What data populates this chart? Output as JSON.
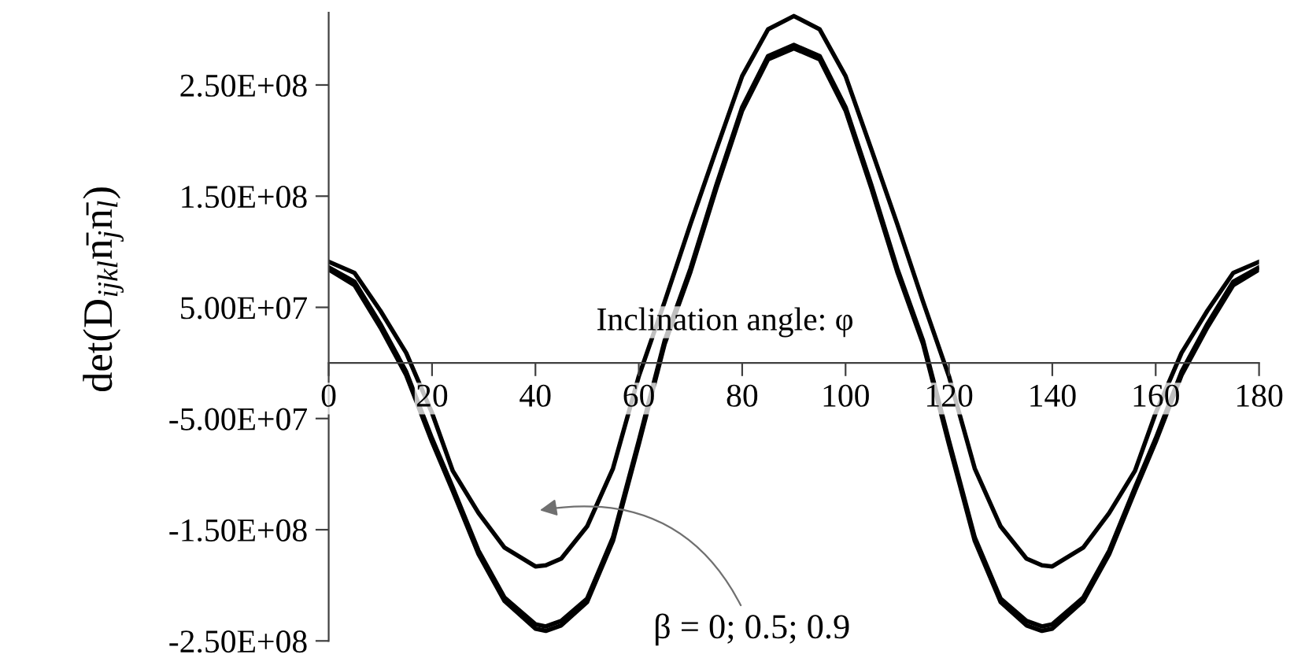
{
  "chart_data": {
    "type": "line",
    "ylabel": "det(D$_{ijkl}$n̄$_{j}$n̄$_{l}$)",
    "xlabel": "Inclination angle: φ",
    "x": [
      0,
      5,
      10,
      15,
      20,
      24,
      29,
      34,
      40,
      42,
      45,
      50,
      55,
      60,
      65,
      70,
      75,
      80,
      85,
      90,
      95,
      100,
      105,
      110,
      115,
      120,
      125,
      130,
      135,
      138,
      140,
      146,
      151,
      156,
      160,
      165,
      170,
      175,
      180
    ],
    "series": [
      {
        "color": "#000000",
        "values": [
          91000000.0,
          81000000.0,
          47000000.0,
          9000000.0,
          -45000000.0,
          -97000000.0,
          -135000000.0,
          -166000000.0,
          -183000000.0,
          -182000000.0,
          -176000000.0,
          -147000000.0,
          -95000000.0,
          -12000000.0,
          55000000.0,
          125000000.0,
          192000000.0,
          258000000.0,
          300000000.0,
          312000000.0,
          300000000.0,
          258000000.0,
          192000000.0,
          125000000.0,
          55000000.0,
          -12000000.0,
          -95000000.0,
          -147000000.0,
          -176000000.0,
          -182000000.0,
          -183000000.0,
          -166000000.0,
          -135000000.0,
          -97000000.0,
          -45000000.0,
          9000000.0,
          47000000.0,
          81000000.0,
          91000000.0
        ]
      },
      {
        "color": "#000000",
        "values": [
          86000000.0,
          73000000.0,
          35000000.0,
          -8000000.0,
          -68000000.0,
          -112000000.0,
          -169000000.0,
          -211000000.0,
          -235000000.0,
          -237000000.0,
          -232000000.0,
          -212000000.0,
          -157000000.0,
          -70000000.0,
          20000000.0,
          85000000.0,
          160000000.0,
          230000000.0,
          276000000.0,
          286000000.0,
          276000000.0,
          230000000.0,
          160000000.0,
          85000000.0,
          20000000.0,
          -70000000.0,
          -157000000.0,
          -212000000.0,
          -232000000.0,
          -237000000.0,
          -235000000.0,
          -211000000.0,
          -169000000.0,
          -112000000.0,
          -68000000.0,
          -8000000.0,
          35000000.0,
          73000000.0,
          86000000.0
        ]
      },
      {
        "color": "#000000",
        "values": [
          84000000.0,
          70000000.0,
          32000000.0,
          -11000000.0,
          -71000000.0,
          -115000000.0,
          -172000000.0,
          -214000000.0,
          -239000000.0,
          -241000000.0,
          -236000000.0,
          -215000000.0,
          -160000000.0,
          -73000000.0,
          17000000.0,
          82000000.0,
          157000000.0,
          227000000.0,
          273000000.0,
          283000000.0,
          273000000.0,
          227000000.0,
          157000000.0,
          82000000.0,
          17000000.0,
          -73000000.0,
          -160000000.0,
          -215000000.0,
          -236000000.0,
          -241000000.0,
          -239000000.0,
          -214000000.0,
          -172000000.0,
          -115000000.0,
          -71000000.0,
          -11000000.0,
          32000000.0,
          70000000.0,
          84000000.0
        ]
      }
    ],
    "xlim": [
      0,
      180
    ],
    "ylim": [
      -250000000.0,
      315000000.0
    ],
    "xticks": [
      0,
      20,
      40,
      60,
      80,
      100,
      120,
      140,
      160,
      180
    ],
    "yticks": [
      {
        "value": 250000000.0,
        "label": "2.50E+08"
      },
      {
        "value": 150000000.0,
        "label": "1.50E+08"
      },
      {
        "value": 50000000.0,
        "label": "5.00E+07"
      },
      {
        "value": -50000000.0,
        "label": "-5.00E+07"
      },
      {
        "value": -150000000.0,
        "label": "-1.50E+08"
      },
      {
        "value": -250000000.0,
        "label": "-2.50E+08"
      }
    ],
    "annotations": [
      "β = 0; 0.5; 0.9"
    ],
    "grid": false,
    "legend": false,
    "marker": "none",
    "line_style": "solid"
  }
}
